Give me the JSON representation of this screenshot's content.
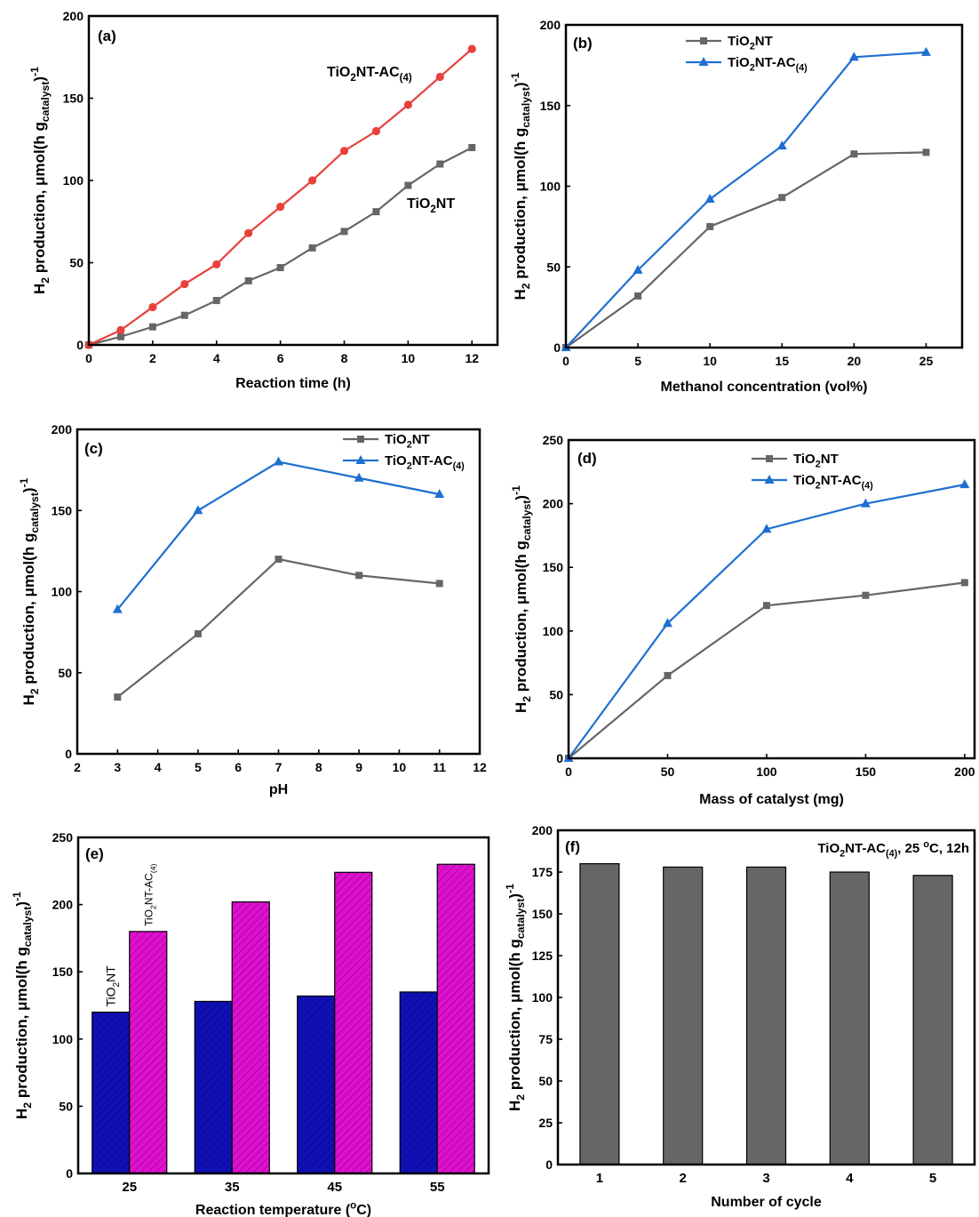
{
  "chart_data": [
    {
      "panel": "(a)",
      "type": "line",
      "xlabel": "Reaction time (h)",
      "ylabel": "H2 production, μmol(h g_catalyst)^-1",
      "xlim": [
        0,
        12.8
      ],
      "ylim": [
        0,
        200
      ],
      "xticks": [
        0,
        2,
        4,
        6,
        8,
        10,
        12
      ],
      "yticks": [
        0,
        50,
        100,
        150,
        200
      ],
      "grid": false,
      "legend": "inline labels",
      "series": [
        {
          "name": "TiO2NT",
          "color": "#666666",
          "marker": "square",
          "x": [
            0,
            1,
            2,
            3,
            4,
            5,
            6,
            7,
            8,
            9,
            10,
            11,
            12
          ],
          "y": [
            0,
            5,
            11,
            18,
            27,
            39,
            47,
            59,
            69,
            81,
            97,
            110,
            120
          ]
        },
        {
          "name": "TiO2NT-AC(4)",
          "color": "#e8413b",
          "marker": "circle",
          "x": [
            0,
            1,
            2,
            3,
            4,
            5,
            6,
            7,
            8,
            9,
            10,
            11,
            12
          ],
          "y": [
            0,
            9,
            23,
            37,
            49,
            68,
            84,
            100,
            118,
            130,
            146,
            163,
            180
          ]
        }
      ]
    },
    {
      "panel": "(b)",
      "type": "line",
      "xlabel": "Methanol concentration (vol%)",
      "ylabel": "H2 production, μmol(h g_catalyst)^-1",
      "xlim": [
        0,
        27.5
      ],
      "ylim": [
        0,
        200
      ],
      "xticks": [
        0,
        5,
        10,
        15,
        20,
        25
      ],
      "yticks": [
        0,
        50,
        100,
        150,
        200
      ],
      "grid": false,
      "legend": "top-center",
      "series": [
        {
          "name": "TiO2NT",
          "color": "#666666",
          "marker": "square",
          "x": [
            0,
            5,
            10,
            15,
            20,
            25
          ],
          "y": [
            0,
            32,
            75,
            93,
            120,
            121
          ]
        },
        {
          "name": "TiO2NT-AC(4)",
          "color": "#1f6fd1",
          "marker": "triangle",
          "x": [
            0,
            5,
            10,
            15,
            20,
            25
          ],
          "y": [
            0,
            48,
            92,
            125,
            180,
            183
          ]
        }
      ]
    },
    {
      "panel": "(c)",
      "type": "line",
      "xlabel": "pH",
      "ylabel": "H2 production, μmol(h g_catalyst)^-1",
      "xlim": [
        2,
        12
      ],
      "ylim": [
        0,
        200
      ],
      "xticks": [
        2,
        3,
        4,
        5,
        6,
        7,
        8,
        9,
        10,
        11,
        12
      ],
      "yticks": [
        0,
        50,
        100,
        150,
        200
      ],
      "grid": false,
      "legend": "top-right",
      "series": [
        {
          "name": "TiO2NT",
          "color": "#666666",
          "marker": "square",
          "x": [
            3,
            5,
            7,
            9,
            11
          ],
          "y": [
            35,
            74,
            120,
            110,
            105
          ]
        },
        {
          "name": "TiO2NT-AC(4)",
          "color": "#1f6fd1",
          "marker": "triangle",
          "x": [
            3,
            5,
            7,
            9,
            11
          ],
          "y": [
            89,
            150,
            180,
            170,
            160
          ]
        }
      ]
    },
    {
      "panel": "(d)",
      "type": "line",
      "xlabel": "Mass of catalyst (mg)",
      "ylabel": "H2 production, μmol(h g_catalyst)^-1",
      "xlim": [
        0,
        205
      ],
      "ylim": [
        0,
        250
      ],
      "xticks": [
        0,
        50,
        100,
        150,
        200
      ],
      "yticks": [
        0,
        50,
        100,
        150,
        200,
        250
      ],
      "grid": false,
      "legend": "top-center",
      "series": [
        {
          "name": "TiO2NT",
          "color": "#666666",
          "marker": "square",
          "x": [
            0,
            50,
            100,
            150,
            200
          ],
          "y": [
            0,
            65,
            120,
            128,
            138
          ]
        },
        {
          "name": "TiO2NT-AC(4)",
          "color": "#1f6fd1",
          "marker": "triangle",
          "x": [
            0,
            50,
            100,
            150,
            200
          ],
          "y": [
            0,
            106,
            180,
            200,
            215
          ]
        }
      ]
    },
    {
      "panel": "(e)",
      "type": "bar",
      "xlabel": "Reaction temperature (°C)",
      "ylabel": "H2 production, μmol(h g_catalyst)^-1",
      "ylim": [
        0,
        250
      ],
      "yticks": [
        0,
        50,
        100,
        150,
        200,
        250
      ],
      "categories": [
        "25",
        "35",
        "45",
        "55"
      ],
      "grid": false,
      "legend": "vertical labels on first group",
      "series": [
        {
          "name": "TiO2NT",
          "color": "#1010b8",
          "values": [
            120,
            128,
            132,
            135
          ]
        },
        {
          "name": "TiO2NT-AC(4)",
          "color": "#e010d0",
          "values": [
            180,
            202,
            224,
            230
          ]
        }
      ]
    },
    {
      "panel": "(f)",
      "type": "bar",
      "xlabel": "Number of cycle",
      "ylabel": "H2 production, μmol(h g_catalyst)^-1",
      "ylim": [
        0,
        200
      ],
      "yticks": [
        0,
        25,
        50,
        75,
        100,
        125,
        150,
        175,
        200
      ],
      "categories": [
        "1",
        "2",
        "3",
        "4",
        "5"
      ],
      "grid": false,
      "annotation": "TiO2NT-AC(4), 25 °C, 12h",
      "series": [
        {
          "name": "TiO2NT-AC(4)",
          "color": "#666666",
          "values": [
            180,
            178,
            178,
            175,
            173
          ]
        }
      ]
    }
  ]
}
